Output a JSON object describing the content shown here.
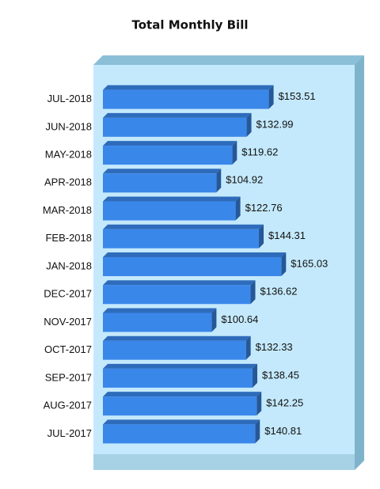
{
  "chart_data": {
    "type": "bar",
    "orientation": "horizontal",
    "title": "Total Monthly Bill",
    "categories": [
      "JUL-2018",
      "JUN-2018",
      "MAY-2018",
      "APR-2018",
      "MAR-2018",
      "FEB-2018",
      "JAN-2018",
      "DEC-2017",
      "NOV-2017",
      "OCT-2017",
      "SEP-2017",
      "AUG-2017",
      "JUL-2017"
    ],
    "values": [
      153.51,
      132.99,
      119.62,
      104.92,
      122.76,
      144.31,
      165.03,
      136.62,
      100.64,
      132.33,
      138.45,
      142.25,
      140.81
    ],
    "value_labels": [
      "$153.51",
      "$132.99",
      "$119.62",
      "$104.92",
      "$122.76",
      "$144.31",
      "$165.03",
      "$136.62",
      "$100.64",
      "$132.33",
      "$138.45",
      "$142.25",
      "$140.81"
    ],
    "color": "#3a87ea",
    "xlim": [
      0,
      230
    ]
  }
}
